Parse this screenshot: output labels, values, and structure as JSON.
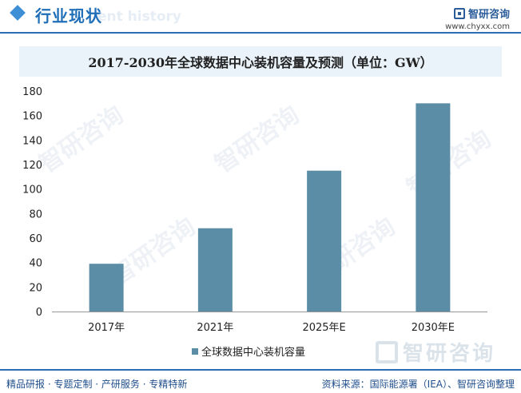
{
  "header": {
    "title": "行业现状",
    "ghost_text": "ent history",
    "brand_name": "智研咨询",
    "brand_url": "www.chyxx.com"
  },
  "watermark": {
    "text": "智研咨询"
  },
  "legend": {
    "label": "全球数据中心装机容量"
  },
  "footer": {
    "left": "精品研报 · 专题定制 · 产研服务 · 专精特新",
    "right": "资料来源：国际能源署（IEA）、智研咨询整理"
  },
  "colors": {
    "bar": "#5b8ea6",
    "accent": "#2b6cb3",
    "title_band": "#e9f3f9"
  },
  "chart_data": {
    "type": "bar",
    "title": "2017-2030年全球数据中心装机容量及预测（单位：GW）",
    "categories": [
      "2017年",
      "2021年",
      "2025年E",
      "2030年E"
    ],
    "series": [
      {
        "name": "全球数据中心装机容量",
        "values": [
          39,
          68,
          115,
          170
        ]
      }
    ],
    "ylim": [
      0,
      180
    ],
    "yticks": [
      0,
      20,
      40,
      60,
      80,
      100,
      120,
      140,
      160,
      180
    ],
    "xlabel": "",
    "ylabel": "",
    "grid": false,
    "legend_position": "bottom"
  }
}
